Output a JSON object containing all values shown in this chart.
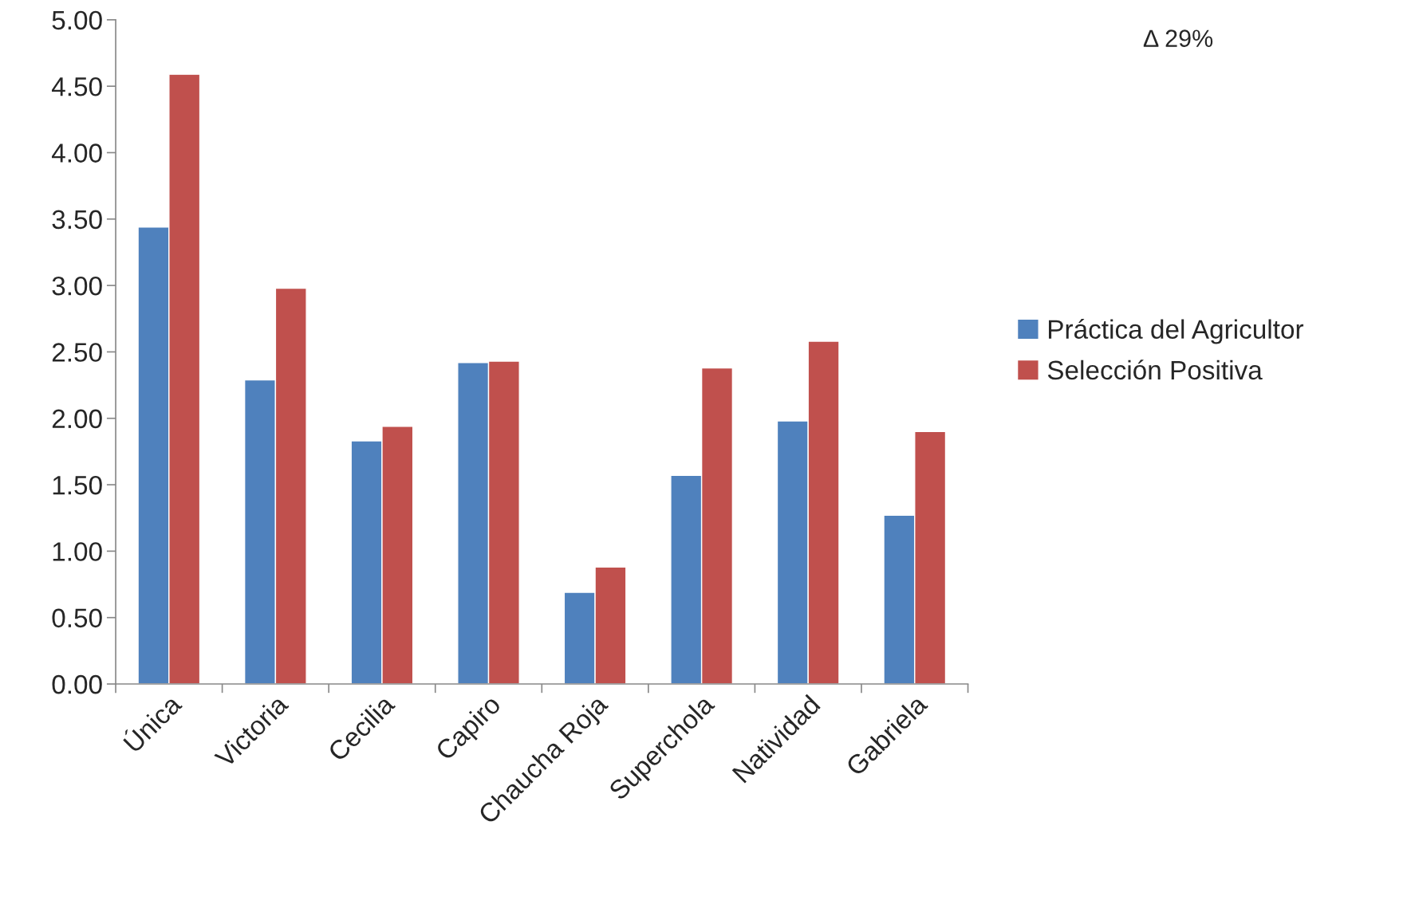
{
  "chart_data": {
    "type": "bar",
    "categories": [
      "Única",
      "Victoria",
      "Cecilia",
      "Capiro",
      "Chaucha Roja",
      "Superchola",
      "Natividad",
      "Gabriela"
    ],
    "series": [
      {
        "name": "Práctica del Agricultor",
        "color": "#4f81bd",
        "values": [
          3.44,
          2.29,
          1.83,
          2.42,
          0.69,
          1.57,
          1.98,
          1.27
        ]
      },
      {
        "name": "Selección Positiva",
        "color": "#c0504d",
        "values": [
          4.59,
          2.98,
          1.94,
          2.43,
          0.88,
          2.38,
          2.58,
          1.9
        ]
      }
    ],
    "ylim": [
      0,
      5
    ],
    "yticks": [
      {
        "value": 0,
        "label": "0.00"
      },
      {
        "value": 0.5,
        "label": "0.50"
      },
      {
        "value": 1,
        "label": "1.00"
      },
      {
        "value": 1.5,
        "label": "1.50"
      },
      {
        "value": 2,
        "label": "2.00"
      },
      {
        "value": 2.5,
        "label": "2.50"
      },
      {
        "value": 3,
        "label": "3.00"
      },
      {
        "value": 3.5,
        "label": "3.50"
      },
      {
        "value": 4,
        "label": "4.00"
      },
      {
        "value": 4.5,
        "label": "4.50"
      },
      {
        "value": 5,
        "label": "5.00"
      }
    ],
    "grid": false,
    "legend": "right",
    "annotations": [
      "Δ 29%"
    ]
  }
}
